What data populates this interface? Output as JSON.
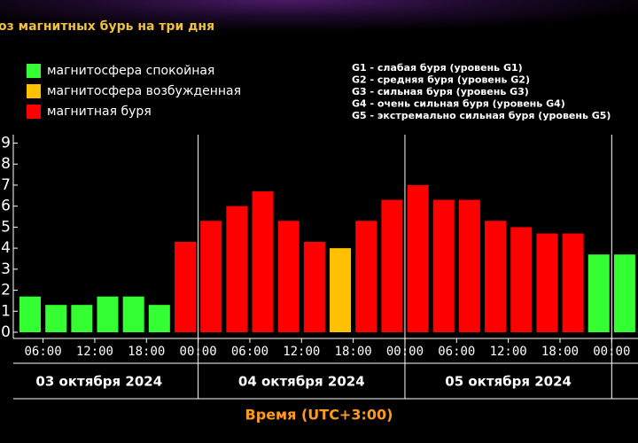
{
  "chart_data": {
    "type": "bar",
    "title": "оз магнитных бурь на три дня",
    "legend": [
      {
        "name": "магнитосфера спокойная",
        "color": "#33ff33"
      },
      {
        "name": "магнитосфера возбужденная",
        "color": "#ffc000"
      },
      {
        "name": "магнитная буря",
        "color": "#ff0000"
      }
    ],
    "scale_notes": [
      "G1 - слабая буря (уровень G1)",
      "G2 - средняя буря (уровень G2)",
      "G3 - сильная буря (уровень G3)",
      "G4 - очень сильная буря (уровень G4)",
      "G5 - экстремально сильная буря (уровень G5)"
    ],
    "values": [
      1.7,
      1.3,
      1.3,
      1.7,
      1.7,
      1.3,
      4.3,
      5.3,
      6.0,
      6.7,
      5.3,
      4.3,
      4.0,
      5.3,
      6.3,
      7.0,
      6.3,
      6.3,
      5.3,
      5.0,
      4.7,
      4.7,
      3.7,
      3.7
    ],
    "colors": [
      "#33ff33",
      "#33ff33",
      "#33ff33",
      "#33ff33",
      "#33ff33",
      "#33ff33",
      "#ff0000",
      "#ff0000",
      "#ff0000",
      "#ff0000",
      "#ff0000",
      "#ff0000",
      "#ffc000",
      "#ff0000",
      "#ff0000",
      "#ff0000",
      "#ff0000",
      "#ff0000",
      "#ff0000",
      "#ff0000",
      "#ff0000",
      "#ff0000",
      "#33ff33",
      "#33ff33"
    ],
    "x_labels": [
      "06:00",
      "12:00",
      "18:00",
      "00:00",
      "06:00",
      "12:00",
      "18:00",
      "00:00",
      "06:00",
      "12:00",
      "18:00",
      "00:00"
    ],
    "days": [
      "03 октября 2024",
      "04 октября 2024",
      "05 октября 2024"
    ],
    "x_title": "Время (UTC+3:00)",
    "ylim": [
      0,
      9.4
    ],
    "yticks": [
      0,
      1,
      2,
      3,
      4,
      5,
      6,
      7,
      8,
      9
    ]
  }
}
